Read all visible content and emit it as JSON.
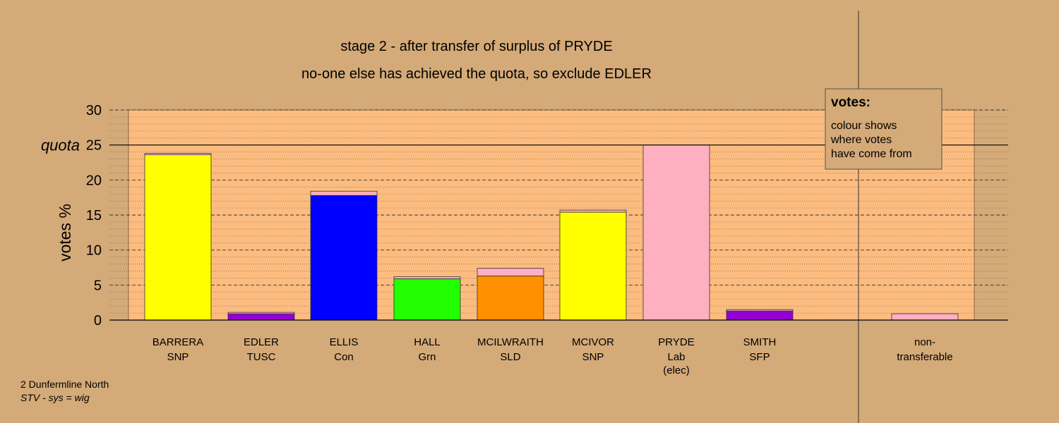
{
  "chart_data": {
    "type": "bar",
    "title": "stage 2 - after transfer of surplus of PRYDE",
    "subtitle": "no-one else has achieved the quota, so exclude EDLER",
    "ylabel": "votes %",
    "ylim": [
      0,
      30
    ],
    "yticks": [
      0,
      5,
      10,
      15,
      20,
      25,
      30
    ],
    "quota": {
      "value": 25,
      "label": "quota"
    },
    "stacked": true,
    "grid": true,
    "legend": {
      "placement": "top-right",
      "title": "votes:",
      "lines": [
        "colour shows",
        "where votes",
        "have come from"
      ]
    },
    "categories": [
      {
        "name": "BARRERA",
        "party": "SNP",
        "note": ""
      },
      {
        "name": "EDLER",
        "party": "TUSC",
        "note": ""
      },
      {
        "name": "ELLIS",
        "party": "Con",
        "note": ""
      },
      {
        "name": "HALL",
        "party": "Grn",
        "note": ""
      },
      {
        "name": "MCILWRAITH",
        "party": "SLD",
        "note": ""
      },
      {
        "name": "MCIVOR",
        "party": "SNP",
        "note": ""
      },
      {
        "name": "PRYDE",
        "party": "Lab",
        "note": "(elec)"
      },
      {
        "name": "SMITH",
        "party": "SFP",
        "note": ""
      },
      {
        "name": "non-",
        "party": "transferable",
        "note": ""
      }
    ],
    "bars": [
      {
        "segments": [
          {
            "value": 23.6,
            "color": "#ffff00"
          },
          {
            "value": 0.2,
            "color": "#ffb0c0"
          }
        ]
      },
      {
        "segments": [
          {
            "value": 0.9,
            "color": "#9400d3"
          },
          {
            "value": 0.2,
            "color": "#ffb0c0"
          }
        ]
      },
      {
        "segments": [
          {
            "value": 17.8,
            "color": "#0000ff"
          },
          {
            "value": 0.6,
            "color": "#ffb0c0"
          }
        ]
      },
      {
        "segments": [
          {
            "value": 5.9,
            "color": "#22ff00"
          },
          {
            "value": 0.3,
            "color": "#ffb0c0"
          }
        ]
      },
      {
        "segments": [
          {
            "value": 6.3,
            "color": "#ff9000"
          },
          {
            "value": 1.1,
            "color": "#ffb0c0"
          }
        ]
      },
      {
        "segments": [
          {
            "value": 15.4,
            "color": "#ffff00"
          },
          {
            "value": 0.3,
            "color": "#ffb0c0"
          }
        ]
      },
      {
        "segments": [
          {
            "value": 25.0,
            "color": "#ffb0c0"
          }
        ]
      },
      {
        "segments": [
          {
            "value": 1.3,
            "color": "#9400d3"
          },
          {
            "value": 0.2,
            "color": "#ffb0c0"
          }
        ]
      },
      {
        "segments": [
          {
            "value": 0.9,
            "color": "#ffb0c0"
          }
        ]
      }
    ],
    "colors": {
      "background": "#d4aa78",
      "plot_background": "#fcbc80"
    }
  },
  "footer": {
    "line1": "2 Dunfermline North",
    "line2": "STV - sys = wig"
  }
}
